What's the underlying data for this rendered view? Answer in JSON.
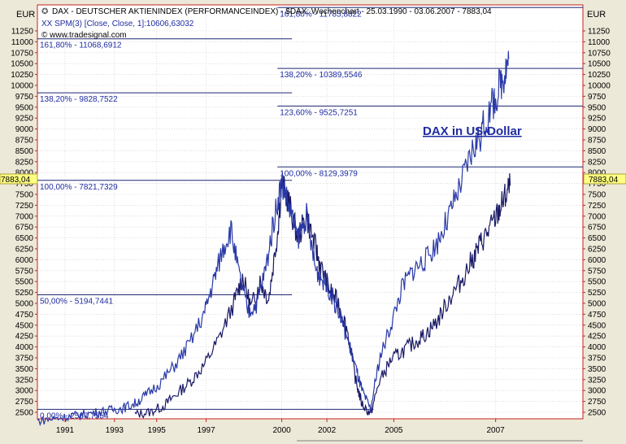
{
  "chart_data": {
    "type": "line",
    "title": "DAX - DEUTSCHER AKTIENINDEX (PERFORMANCEINDEX) - $DAX: Wochenchart - 25.03.1990 - 03.06.2007 - 7883,04",
    "subtitle": "XX SPM(3) [Close, Close, 1]:10606,63032",
    "credit": "© www.tradesignal.com",
    "unit_left": "EUR",
    "unit_right": "EUR",
    "annotation": "DAX in US-Dollar",
    "current_value_label": "7883,04",
    "ylim": [
      2400,
      11800
    ],
    "xlim": [
      1990.25,
      2009.0
    ],
    "y_ticks": [
      "2500",
      "2750",
      "3000",
      "3250",
      "3500",
      "3750",
      "4000",
      "4250",
      "4500",
      "4750",
      "5000",
      "5250",
      "5500",
      "5750",
      "6000",
      "6250",
      "6500",
      "6750",
      "7000",
      "7250",
      "7500",
      "7750",
      "8000",
      "8250",
      "8500",
      "8750",
      "9000",
      "9250",
      "9500",
      "9750",
      "10000",
      "10250",
      "10500",
      "10750",
      "11000",
      "11250"
    ],
    "x_ticks": [
      {
        "label": "1991",
        "x": 1991.2
      },
      {
        "label": "1993",
        "x": 1992.9
      },
      {
        "label": "1995",
        "x": 1994.35
      },
      {
        "label": "1997",
        "x": 1996.05
      },
      {
        "label": "2000",
        "x": 1998.65
      },
      {
        "label": "2002",
        "x": 2000.2
      },
      {
        "label": "2005",
        "x": 2002.5
      },
      {
        "label": "2007",
        "x": 2006.0
      }
    ],
    "levels": [
      {
        "label": "161,80% - 11068,6912",
        "value": 11068.69,
        "x_start": 1990.25,
        "x_end": 1999.0,
        "label_side": "left"
      },
      {
        "label": "138,20% - 9828,7522",
        "value": 9828.75,
        "x_start": 1990.25,
        "x_end": 1999.0,
        "label_side": "left"
      },
      {
        "label": "100,00% - 7821,7329",
        "value": 7821.73,
        "x_start": 1990.25,
        "x_end": 1999.0,
        "label_side": "left"
      },
      {
        "label": "50,00% - 5194,7441",
        "value": 5194.74,
        "x_start": 1990.25,
        "x_end": 1999.0,
        "label_side": "left"
      },
      {
        "label": "0,00% - 2567,7554",
        "value": 2567.76,
        "x_start": 1990.25,
        "x_end": 2001.8,
        "label_side": "left"
      },
      {
        "label": "161,80% - 11785,8822",
        "value": 11785.88,
        "x_start": 1998.5,
        "x_end": 2009.0,
        "label_side": "right"
      },
      {
        "label": "138,20% - 10389,5546",
        "value": 10389.55,
        "x_start": 1998.5,
        "x_end": 2009.0,
        "label_side": "right"
      },
      {
        "label": "123,60% - 9525,7251",
        "value": 9525.73,
        "x_start": 1998.5,
        "x_end": 2009.0,
        "label_side": "right"
      },
      {
        "label": "100,00% - 8129,3979",
        "value": 8129.4,
        "x_start": 1998.5,
        "x_end": 2009.0,
        "label_side": "right"
      }
    ],
    "series": [
      {
        "color": "#1a1a66",
        "x": [
          1993.6,
          1994.1,
          1994.6,
          1995.0,
          1995.5,
          1996.0,
          1996.5,
          1997.0,
          1997.3,
          1997.6,
          1997.9,
          1998.2,
          1998.5,
          1998.65,
          1998.9,
          1999.2,
          1999.5,
          1999.8,
          2000.0,
          2000.3,
          2000.6,
          2000.9,
          2001.2,
          2001.4,
          2001.7,
          2002.0,
          2002.4,
          2002.8,
          2003.2,
          2003.6,
          2004.0,
          2004.4,
          2004.8,
          2005.2,
          2005.5,
          2005.8,
          2006.1,
          2006.3,
          2006.5
        ],
        "y": [
          2450,
          2500,
          2650,
          2900,
          3200,
          3600,
          4200,
          5000,
          5600,
          4900,
          5500,
          5100,
          6600,
          7750,
          7300,
          6500,
          7000,
          6300,
          5800,
          5300,
          5000,
          4400,
          3200,
          2700,
          2450,
          3200,
          3700,
          3900,
          4100,
          4300,
          4600,
          5100,
          5500,
          6000,
          6400,
          6700,
          7100,
          7400,
          7700
        ]
      },
      {
        "color": "#2a3aa8",
        "x": [
          1990.25,
          1990.8,
          1991.3,
          1991.8,
          1992.3,
          1992.8,
          1993.2,
          1993.6,
          1994.0,
          1994.5,
          1995.0,
          1995.5,
          1996.0,
          1996.3,
          1996.6,
          1996.9,
          1997.2,
          1997.5,
          1997.8,
          1998.1,
          1998.4,
          1998.65,
          1998.9,
          1999.2,
          1999.5,
          1999.8,
          2000.0,
          2000.3,
          2000.6,
          2000.9,
          2001.2,
          2001.4,
          2001.7,
          2002.0,
          2002.4,
          2002.8,
          2003.2,
          2003.6,
          2004.0,
          2004.4,
          2004.8,
          2005.2,
          2005.5,
          2005.8,
          2006.1,
          2006.3,
          2006.45
        ],
        "y": [
          2300,
          2350,
          2400,
          2450,
          2500,
          2550,
          2600,
          2700,
          2900,
          3200,
          3600,
          4100,
          4800,
          5500,
          6200,
          6700,
          5600,
          4800,
          5000,
          5800,
          7000,
          7800,
          7200,
          6500,
          7000,
          5800,
          5600,
          5300,
          4800,
          4200,
          3500,
          3000,
          2550,
          3700,
          4500,
          5400,
          5800,
          6000,
          6400,
          7000,
          7700,
          8500,
          8900,
          9400,
          9900,
          10300,
          10606
        ]
      }
    ]
  }
}
